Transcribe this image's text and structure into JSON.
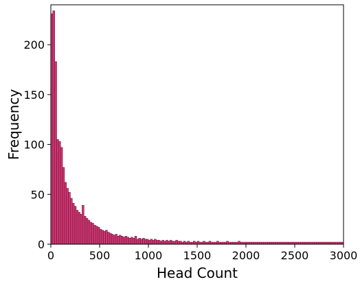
{
  "chart_data": {
    "type": "bar",
    "title": "",
    "xlabel": "Head Count",
    "ylabel": "Frequency",
    "xlim": [
      0,
      3000
    ],
    "ylim": [
      0,
      240
    ],
    "xticks": [
      0,
      500,
      1000,
      1500,
      2000,
      2500,
      3000
    ],
    "yticks": [
      0,
      50,
      100,
      150,
      200
    ],
    "xtick_labels": [
      "0",
      "500",
      "1000",
      "1500",
      "2000",
      "2500",
      "3000"
    ],
    "ytick_labels": [
      "0",
      "50",
      "100",
      "150",
      "200"
    ],
    "grid": false,
    "bin_width": 20,
    "bin_start": 0,
    "bar_color": "#c2185b",
    "bar_edge_color": "#7a0f3a",
    "values": [
      231,
      234,
      183,
      105,
      103,
      97,
      77,
      62,
      56,
      52,
      46,
      41,
      38,
      34,
      32,
      30,
      39,
      28,
      26,
      24,
      22,
      21,
      19,
      18,
      17,
      15,
      14,
      13,
      14,
      12,
      11,
      10,
      9,
      10,
      8,
      9,
      8,
      7,
      8,
      7,
      6,
      7,
      6,
      8,
      5,
      6,
      5,
      6,
      5,
      5,
      4,
      5,
      4,
      5,
      4,
      4,
      3,
      4,
      3,
      4,
      3,
      4,
      3,
      3,
      4,
      3,
      3,
      2,
      3,
      2,
      3,
      2,
      2,
      3,
      2,
      3,
      2,
      2,
      3,
      2,
      2,
      3,
      2,
      2,
      2,
      3,
      2,
      2,
      2,
      2,
      3,
      2,
      2,
      2,
      2,
      2,
      3,
      2,
      2,
      2,
      2,
      2,
      2,
      2,
      2,
      2,
      2,
      2,
      2,
      2,
      2,
      2,
      2,
      2,
      2,
      2,
      2,
      2,
      2,
      2,
      2,
      2,
      2,
      2,
      2,
      2,
      2,
      2,
      2,
      2,
      2,
      2,
      2,
      2,
      2,
      2,
      2,
      2,
      2,
      2,
      2,
      2,
      2,
      2,
      2,
      2,
      2,
      2,
      2,
      2
    ]
  }
}
